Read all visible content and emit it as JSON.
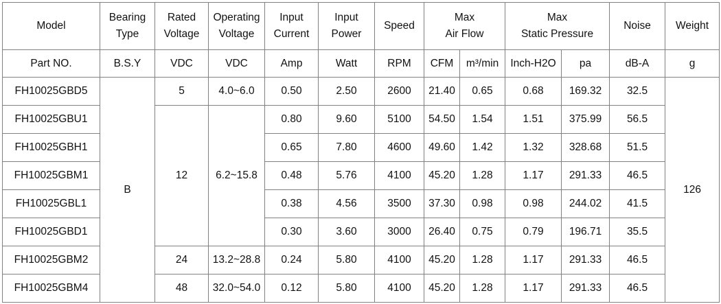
{
  "table": {
    "header_row1": [
      "Model",
      "Bearing\nType",
      "Rated\nVoltage",
      "Operating\nVoltage",
      "Input\nCurrent",
      "Input\nPower",
      "Speed",
      "Max\nAir Flow",
      "Max\nStatic Pressure",
      "Noise",
      "Weight"
    ],
    "header_row2": [
      "Part NO.",
      "B.S.Y",
      "VDC",
      "VDC",
      "Amp",
      "Watt",
      "RPM",
      "CFM",
      "m³/min",
      "Inch-H2O",
      "pa",
      "dB-A",
      "g"
    ],
    "rows": [
      [
        "FH10025GBD5",
        "B",
        "5",
        "4.0~6.0",
        "0.50",
        "2.50",
        "2600",
        "21.40",
        "0.65",
        "0.68",
        "169.32",
        "32.5",
        "126"
      ],
      [
        "FH10025GBU1",
        "12",
        "6.2~15.8",
        "0.80",
        "9.60",
        "5100",
        "54.50",
        "1.54",
        "1.51",
        "375.99",
        "56.5"
      ],
      [
        "FH10025GBH1",
        "0.65",
        "7.80",
        "4600",
        "49.60",
        "1.42",
        "1.32",
        "328.68",
        "51.5"
      ],
      [
        "FH10025GBM1",
        "0.48",
        "5.76",
        "4100",
        "45.20",
        "1.28",
        "1.17",
        "291.33",
        "46.5"
      ],
      [
        "FH10025GBL1",
        "0.38",
        "4.56",
        "3500",
        "37.30",
        "0.98",
        "0.98",
        "244.02",
        "41.5"
      ],
      [
        "FH10025GBD1",
        "0.30",
        "3.60",
        "3000",
        "26.40",
        "0.75",
        "0.79",
        "196.71",
        "35.5"
      ],
      [
        "FH10025GBM2",
        "24",
        "13.2~28.8",
        "0.24",
        "5.80",
        "4100",
        "45.20",
        "1.28",
        "1.17",
        "291.33",
        "46.5"
      ],
      [
        "FH10025GBM4",
        "48",
        "32.0~54.0",
        "0.12",
        "5.80",
        "4100",
        "45.20",
        "1.28",
        "1.17",
        "291.33",
        "46.5"
      ]
    ]
  }
}
